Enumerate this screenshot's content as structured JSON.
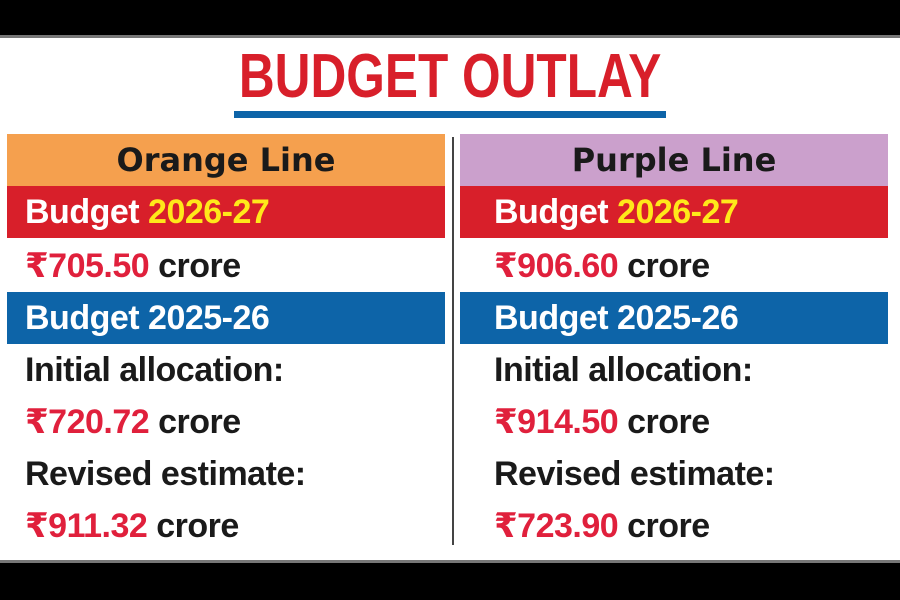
{
  "title": "BUDGET OUTLAY",
  "columns": [
    {
      "name": "Orange Line",
      "budget_new_label": "Budget",
      "budget_new_year": "2026-27",
      "budget_new_amount": "₹705.50",
      "unit": "crore",
      "budget_old_label": "Budget 2025-26",
      "initial_label": "Initial allocation:",
      "initial_amount": "₹720.72",
      "revised_label": "Revised estimate:",
      "revised_amount": "₹911.32"
    },
    {
      "name": "Purple Line",
      "budget_new_label": "Budget",
      "budget_new_year": "2026-27",
      "budget_new_amount": "₹906.60",
      "unit": "crore",
      "budget_old_label": "Budget 2025-26",
      "initial_label": "Initial allocation:",
      "initial_amount": "₹914.50",
      "revised_label": "Revised estimate:",
      "revised_amount": "₹723.90"
    }
  ],
  "colors": {
    "red": "#d81f2a",
    "blue": "#0d64a8",
    "orange": "#f5a04e",
    "purple": "#cba0cc",
    "amount": "#e0203c",
    "year": "#ffe81a"
  }
}
